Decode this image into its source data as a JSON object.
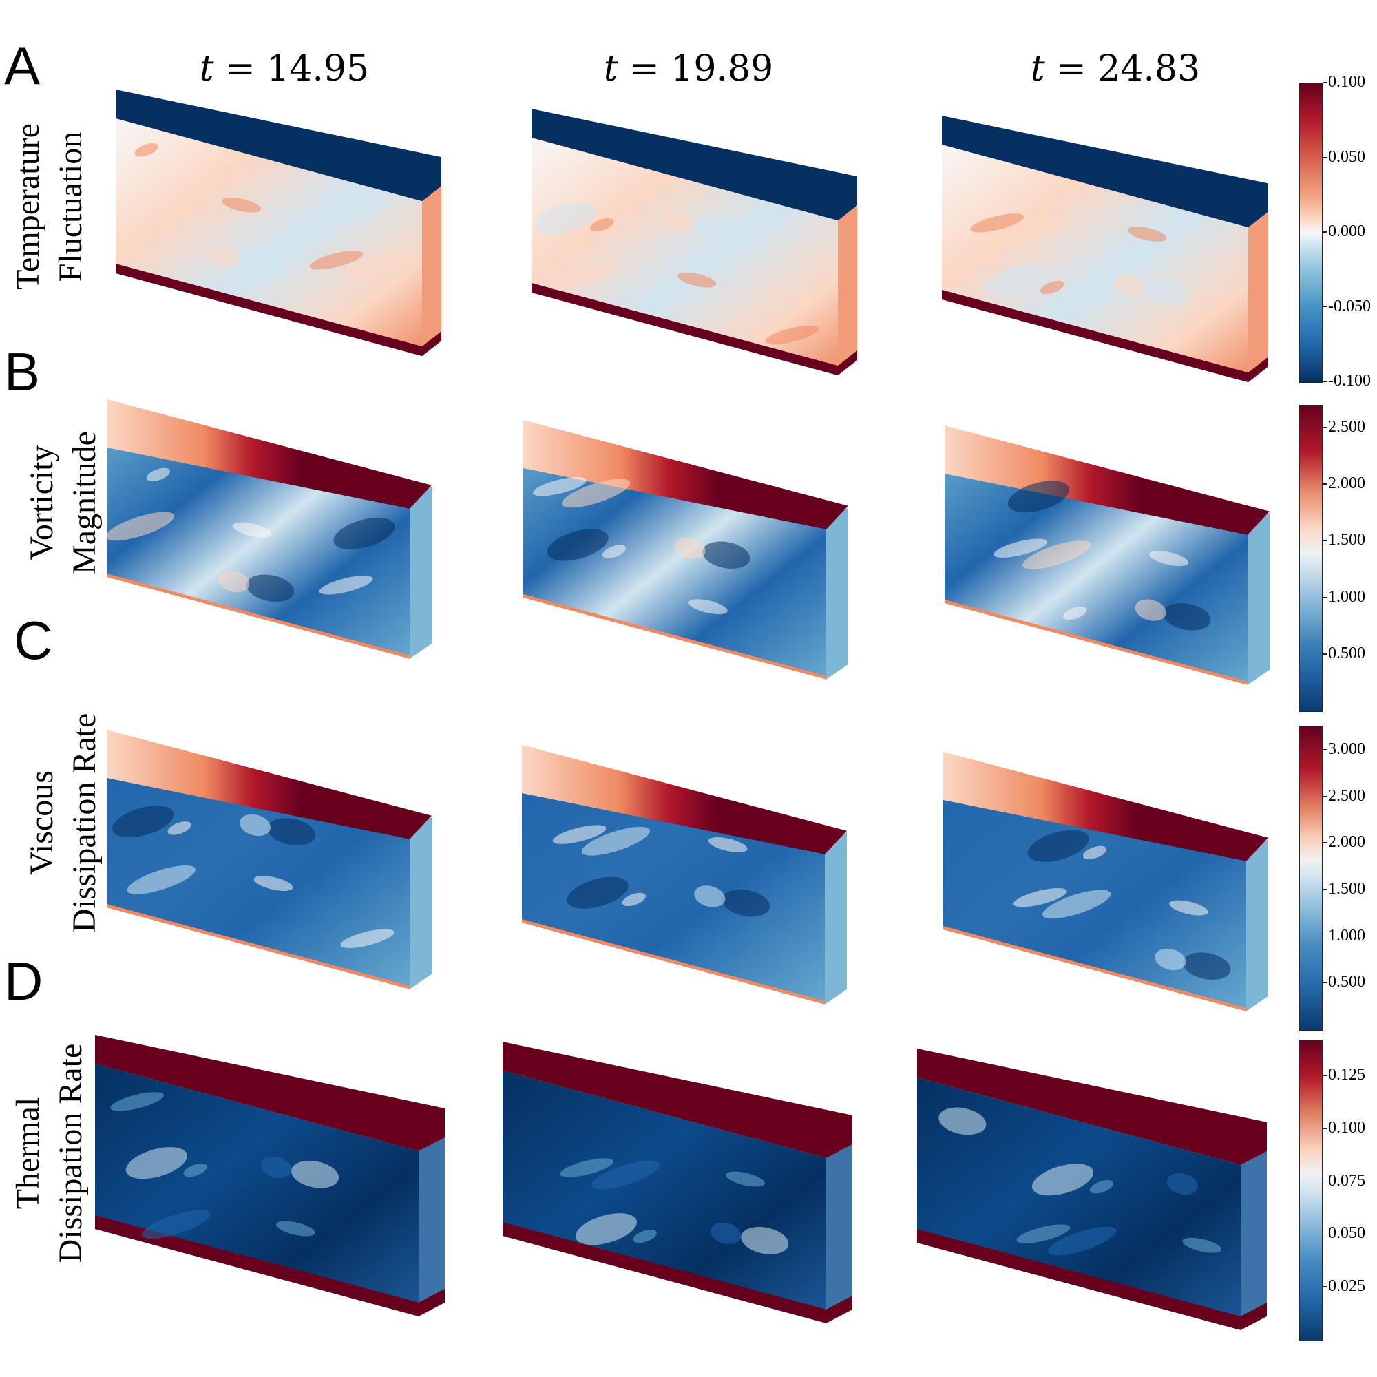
{
  "panel_letters": [
    "A",
    "B",
    "C",
    "D"
  ],
  "time_labels": [
    {
      "symbol": "t",
      "rest": " = 14.95"
    },
    {
      "symbol": "t",
      "rest": " = 19.89"
    },
    {
      "symbol": "t",
      "rest": " = 24.83"
    }
  ],
  "rows": [
    {
      "id": "temperature",
      "label_line1": "Temperature",
      "label_line2": "Fluctuation",
      "colorbar": {
        "colormap": "RdBu_r",
        "tick_labels": [
          "0.100",
          "0.050",
          "0.000",
          "-0.050",
          "-0.100"
        ],
        "tick_values": [
          0.1,
          0.05,
          0.0,
          -0.05,
          -0.1
        ],
        "range": [
          -0.1,
          0.1
        ]
      }
    },
    {
      "id": "vorticity",
      "label_line1": "Vorticity",
      "label_line2": "Magnitude",
      "colorbar": {
        "colormap": "RdBu_r",
        "tick_labels": [
          "2.500",
          "2.000",
          "1.500",
          "1.000",
          "0.500"
        ],
        "tick_values": [
          2.5,
          2.0,
          1.5,
          1.0,
          0.5
        ],
        "range": [
          0.0,
          2.7
        ]
      }
    },
    {
      "id": "viscous",
      "label_line1": "Viscous",
      "label_line2": "Dissipation Rate",
      "colorbar": {
        "colormap": "RdBu_r",
        "tick_labels": [
          "3.000",
          "2.500",
          "2.000",
          "1.500",
          "1.000",
          "0.500"
        ],
        "tick_values": [
          3.0,
          2.5,
          2.0,
          1.5,
          1.0,
          0.5
        ],
        "range": [
          0.0,
          3.25
        ]
      }
    },
    {
      "id": "thermal",
      "label_line1": "Thermal",
      "label_line2": "Dissipation Rate",
      "colorbar": {
        "colormap": "RdBu_r",
        "tick_labels": [
          "0.125",
          "0.100",
          "0.075",
          "0.050",
          "0.025"
        ],
        "tick_values": [
          0.125,
          0.1,
          0.075,
          0.05,
          0.025
        ],
        "range": [
          0.0,
          0.142
        ]
      }
    }
  ],
  "colors": {
    "dark_red": "#67001f",
    "red": "#b2182b",
    "light_red": "#ef8a62",
    "pale_red": "#fbd7c4",
    "white": "#f7f7f7",
    "pale_blue": "#d1e5f0",
    "light_blue": "#67a9cf",
    "blue": "#2166ac",
    "dark_blue": "#053061"
  }
}
